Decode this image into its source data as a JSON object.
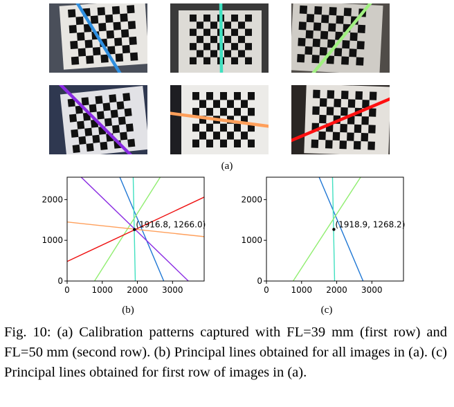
{
  "figure": {
    "label_a": "(a)",
    "label_b": "(b)",
    "label_c": "(c)",
    "caption": "Fig. 10: (a) Calibration patterns captured with FL=39 mm (first row) and FL=50 mm (second row). (b) Principal lines obtained for all images in (a). (c) Principal lines obtained for first row of images in (a).",
    "photos": [
      {
        "line_color": "#2f8fe0",
        "bg": "#4a4f5a",
        "board": "#e8e6e2"
      },
      {
        "line_color": "#40e0c0",
        "bg": "#3a3a3a",
        "board": "#dddbd6"
      },
      {
        "line_color": "#a0f080",
        "bg": "#504c48",
        "board": "#cfccc6"
      },
      {
        "line_color": "#8a2be2",
        "bg": "#2f3850",
        "board": "#e2e2e6"
      },
      {
        "line_color": "#ff9f5a",
        "bg": "#1e1e22",
        "board": "#ecebe8"
      },
      {
        "line_color": "#ff1010",
        "bg": "#2a2624",
        "board": "#e4e1dc"
      }
    ]
  },
  "chart_data": [
    {
      "type": "line",
      "xlim": [
        0,
        3900
      ],
      "ylim": [
        0,
        2550
      ],
      "xticks": [
        0,
        1000,
        2000,
        3000
      ],
      "yticks": [
        0,
        1000,
        2000
      ],
      "grid": false,
      "point": {
        "x": 1916.8,
        "y": 1266.0,
        "label": "(1916.8, 1266.0)"
      },
      "series": [
        {
          "color": "#1f77d4",
          "values": [
            [
              1500,
              2550
            ],
            [
              2750,
              0
            ]
          ]
        },
        {
          "color": "#40e0c0",
          "values": [
            [
              1880,
              2550
            ],
            [
              1940,
              0
            ]
          ]
        },
        {
          "color": "#90ee70",
          "values": [
            [
              2650,
              2550
            ],
            [
              780,
              0
            ]
          ]
        },
        {
          "color": "#8a2be2",
          "values": [
            [
              400,
              2550
            ],
            [
              3450,
              0
            ]
          ]
        },
        {
          "color": "#ff9f5a",
          "values": [
            [
              0,
              1450
            ],
            [
              3900,
              1090
            ]
          ]
        },
        {
          "color": "#ee1111",
          "values": [
            [
              0,
              480
            ],
            [
              3900,
              2060
            ]
          ]
        }
      ]
    },
    {
      "type": "line",
      "xlim": [
        0,
        3900
      ],
      "ylim": [
        0,
        2550
      ],
      "xticks": [
        0,
        1000,
        2000,
        3000
      ],
      "yticks": [
        0,
        1000,
        2000
      ],
      "grid": false,
      "point": {
        "x": 1918.9,
        "y": 1268.2,
        "label": "(1918.9, 1268.2)"
      },
      "series": [
        {
          "color": "#1f77d4",
          "values": [
            [
              1500,
              2550
            ],
            [
              2750,
              0
            ]
          ]
        },
        {
          "color": "#40e0c0",
          "values": [
            [
              1880,
              2550
            ],
            [
              1940,
              0
            ]
          ]
        },
        {
          "color": "#90ee70",
          "values": [
            [
              2680,
              2550
            ],
            [
              760,
              0
            ]
          ]
        }
      ]
    }
  ]
}
